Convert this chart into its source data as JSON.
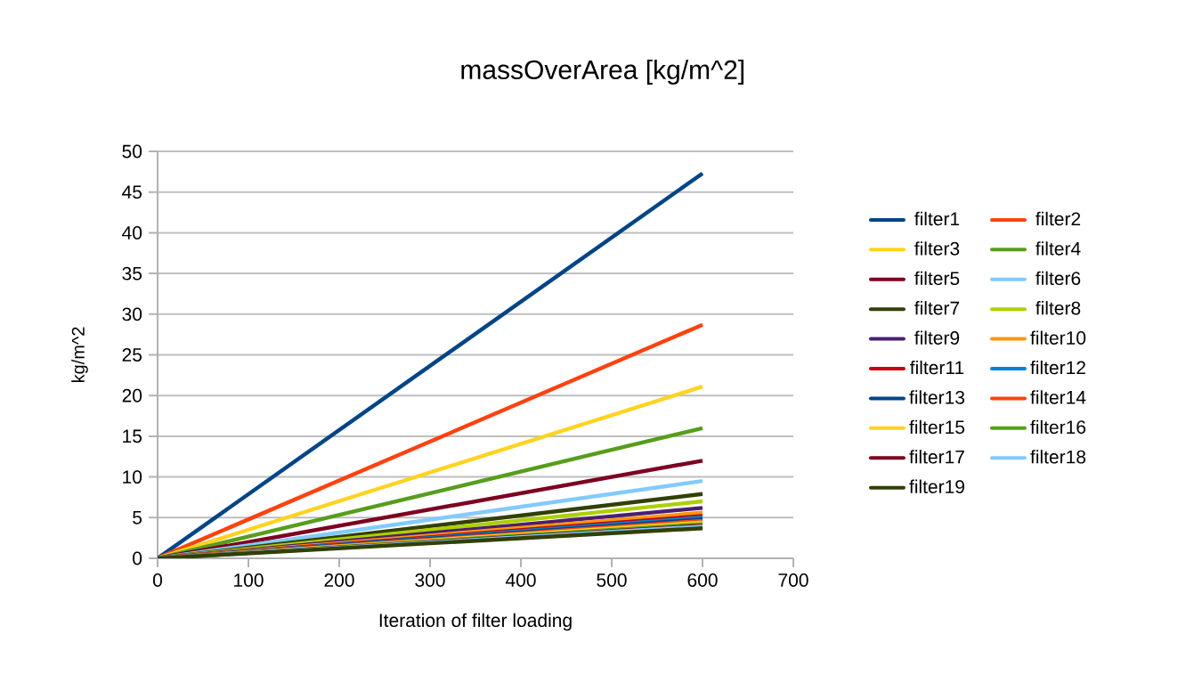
{
  "chart_data": {
    "type": "line",
    "title": "massOverArea [kg/m^2]",
    "xlabel": "Iteration of filter loading",
    "ylabel": "kg/m^2",
    "xlim": [
      0,
      700
    ],
    "xticks": [
      0,
      100,
      200,
      300,
      400,
      500,
      600,
      700
    ],
    "ylim": [
      0,
      50
    ],
    "yticks": [
      0,
      5,
      10,
      15,
      20,
      25,
      30,
      35,
      40,
      45,
      50
    ],
    "grid": "y",
    "legend": "right",
    "marker": "none",
    "line_style": "solid",
    "x": [
      0,
      600
    ],
    "series": [
      {
        "name": "filter1",
        "color": "#004586",
        "values": [
          0,
          47.3
        ]
      },
      {
        "name": "filter2",
        "color": "#ff420e",
        "values": [
          0,
          28.7
        ]
      },
      {
        "name": "filter3",
        "color": "#ffd320",
        "values": [
          0,
          21.1
        ]
      },
      {
        "name": "filter4",
        "color": "#579d1c",
        "values": [
          0,
          16.0
        ]
      },
      {
        "name": "filter5",
        "color": "#7e0021",
        "values": [
          0,
          12.0
        ]
      },
      {
        "name": "filter6",
        "color": "#83caff",
        "values": [
          0,
          9.5
        ]
      },
      {
        "name": "filter7",
        "color": "#314004",
        "values": [
          0,
          7.9
        ]
      },
      {
        "name": "filter8",
        "color": "#aecf00",
        "values": [
          0,
          7.0
        ]
      },
      {
        "name": "filter9",
        "color": "#4b1f6f",
        "values": [
          0,
          6.2
        ]
      },
      {
        "name": "filter10",
        "color": "#ff950e",
        "values": [
          0,
          5.6
        ]
      },
      {
        "name": "filter11",
        "color": "#c5000b",
        "values": [
          0,
          5.2
        ]
      },
      {
        "name": "filter12",
        "color": "#0084d1",
        "values": [
          0,
          5.0
        ]
      },
      {
        "name": "filter13",
        "color": "#004586",
        "values": [
          0,
          4.8
        ]
      },
      {
        "name": "filter14",
        "color": "#ff420e",
        "values": [
          0,
          4.6
        ]
      },
      {
        "name": "filter15",
        "color": "#ffd320",
        "values": [
          0,
          4.4
        ]
      },
      {
        "name": "filter16",
        "color": "#579d1c",
        "values": [
          0,
          4.2
        ]
      },
      {
        "name": "filter17",
        "color": "#7e0021",
        "values": [
          0,
          4.0
        ]
      },
      {
        "name": "filter18",
        "color": "#83caff",
        "values": [
          0,
          3.9
        ]
      },
      {
        "name": "filter19",
        "color": "#314004",
        "values": [
          0,
          3.7
        ]
      }
    ]
  }
}
